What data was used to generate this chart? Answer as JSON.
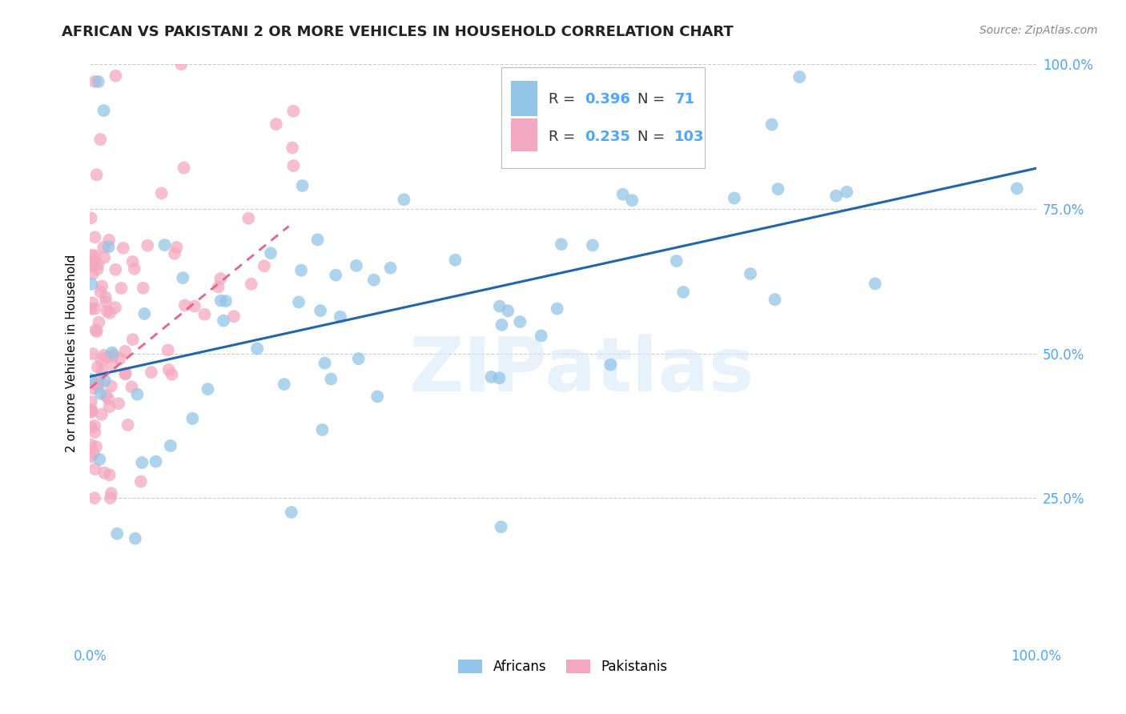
{
  "title": "AFRICAN VS PAKISTANI 2 OR MORE VEHICLES IN HOUSEHOLD CORRELATION CHART",
  "source": "Source: ZipAtlas.com",
  "ylabel_label": "2 or more Vehicles in Household",
  "legend_labels": [
    "Africans",
    "Pakistanis"
  ],
  "african_color": "#92C5E8",
  "pakistani_color": "#F4A8C0",
  "african_line_color": "#2166AC",
  "pakistani_line_color": "#E8628A",
  "tick_color": "#4DA6FF",
  "watermark": "ZIPatlas",
  "xlim": [
    0.0,
    1.0
  ],
  "ylim": [
    0.0,
    1.0
  ],
  "african_line_x": [
    0.0,
    1.0
  ],
  "african_line_y": [
    0.46,
    0.82
  ],
  "pakistani_line_x": [
    0.0,
    0.21
  ],
  "pakistani_line_y": [
    0.44,
    0.72
  ],
  "grid_color": "#CCCCCC",
  "legend_box_color": "#CCCCCC",
  "title_fontsize": 13,
  "source_fontsize": 10,
  "tick_fontsize": 12,
  "ylabel_fontsize": 11
}
